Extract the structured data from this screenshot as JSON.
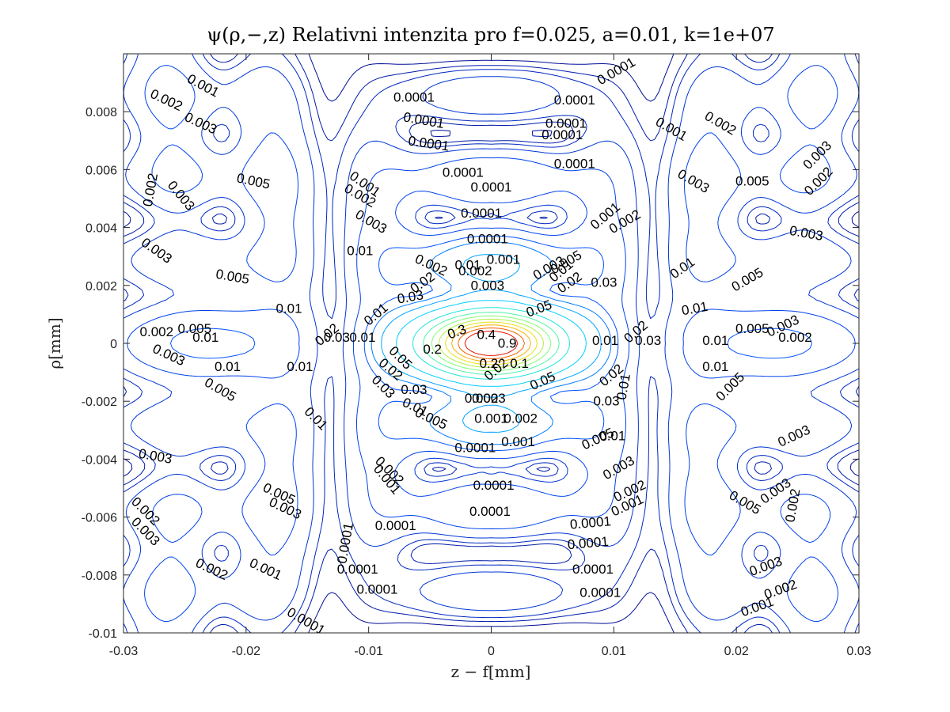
{
  "chart_data": {
    "type": "contour",
    "title": "ψ(ρ,−,z) Relativni intenzita pro f=0.025, a=0.01, k=1e+07",
    "xlabel": "z − f[mm]",
    "ylabel": "ρ[mm]",
    "xlim": [
      -0.03,
      0.03
    ],
    "ylim": [
      -0.01,
      0.01
    ],
    "x_ticks": [
      -0.03,
      -0.02,
      -0.01,
      0,
      0.01,
      0.02,
      0.03
    ],
    "x_tick_labels": [
      "-0.03",
      "-0.02",
      "-0.01",
      "0",
      "0.01",
      "0.02",
      "0.03"
    ],
    "y_ticks": [
      -0.01,
      -0.008,
      -0.006,
      -0.004,
      -0.002,
      0,
      0.002,
      0.004,
      0.006,
      0.008
    ],
    "y_tick_labels": [
      "-0.01",
      "-0.008",
      "-0.006",
      "-0.004",
      "-0.002",
      "0",
      "0.002",
      "0.004",
      "0.006",
      "0.008"
    ],
    "grid": false,
    "contour_levels": [
      0.0001,
      0.001,
      0.002,
      0.003,
      0.005,
      0.01,
      0.02,
      0.03,
      0.05,
      0.1,
      0.2,
      0.3,
      0.4,
      0.5,
      0.6,
      0.7,
      0.8,
      0.9
    ],
    "colormap": "jet",
    "line_colors": {
      "low": "#000080",
      "mid": "#00c8ff",
      "high": "#ff2000"
    },
    "contour_labels": [
      {
        "text": "0.001",
        "x": -0.0235,
        "y": 0.0089,
        "angle": 28
      },
      {
        "text": "0.002",
        "x": -0.0265,
        "y": 0.0084,
        "angle": 25
      },
      {
        "text": "0.003",
        "x": -0.0237,
        "y": 0.0076,
        "angle": 25
      },
      {
        "text": "0.0001",
        "x": -0.0063,
        "y": 0.0085,
        "angle": 0
      },
      {
        "text": "0.0001",
        "x": -0.0055,
        "y": 0.0077,
        "angle": 10
      },
      {
        "text": "0.0001",
        "x": -0.0051,
        "y": 0.0069,
        "angle": 8
      },
      {
        "text": "0.0001",
        "x": 0.0068,
        "y": 0.0084,
        "angle": 0
      },
      {
        "text": "0.0001",
        "x": 0.0061,
        "y": 0.0076,
        "angle": 0
      },
      {
        "text": "0.0001",
        "x": 0.0058,
        "y": 0.0072,
        "angle": 0
      },
      {
        "text": "0.0001",
        "x": 0.0102,
        "y": 0.0094,
        "angle": -30
      },
      {
        "text": "0.0001",
        "x": -0.0023,
        "y": 0.0059,
        "angle": 0
      },
      {
        "text": "0.0001",
        "x": 0.0068,
        "y": 0.0062,
        "angle": 0
      },
      {
        "text": "0.0001",
        "x": 0,
        "y": 0.0054,
        "angle": 0
      },
      {
        "text": "0.0001",
        "x": -0.0008,
        "y": 0.0045,
        "angle": 0
      },
      {
        "text": "0.0001",
        "x": -0.0003,
        "y": 0.0036,
        "angle": 0
      },
      {
        "text": "0.001",
        "x": 0.001,
        "y": 0.0029,
        "angle": 0
      },
      {
        "text": "0.001",
        "x": -0.0103,
        "y": 0.0055,
        "angle": 35
      },
      {
        "text": "0.002",
        "x": -0.0107,
        "y": 0.0051,
        "angle": 30
      },
      {
        "text": "0.003",
        "x": -0.0098,
        "y": 0.0042,
        "angle": 30
      },
      {
        "text": "0.005",
        "x": -0.0194,
        "y": 0.0056,
        "angle": 12
      },
      {
        "text": "0.002",
        "x": -0.0278,
        "y": 0.0053,
        "angle": -80
      },
      {
        "text": "0.003",
        "x": -0.0253,
        "y": 0.0051,
        "angle": 50
      },
      {
        "text": "0.003",
        "x": -0.0273,
        "y": 0.0032,
        "angle": 35
      },
      {
        "text": "0.01",
        "x": -0.0107,
        "y": 0.0032,
        "angle": 0
      },
      {
        "text": "0.005",
        "x": -0.0211,
        "y": 0.0023,
        "angle": 10
      },
      {
        "text": "0.01",
        "x": -0.0165,
        "y": 0.0012,
        "angle": 0
      },
      {
        "text": "0.001",
        "x": 0.0147,
        "y": 0.0074,
        "angle": 30
      },
      {
        "text": "0.002",
        "x": 0.0187,
        "y": 0.0076,
        "angle": 30
      },
      {
        "text": "0.003",
        "x": 0.0266,
        "y": 0.0065,
        "angle": -45
      },
      {
        "text": "0.002",
        "x": 0.0267,
        "y": 0.0056,
        "angle": -45
      },
      {
        "text": "0.003",
        "x": 0.0165,
        "y": 0.0056,
        "angle": 30
      },
      {
        "text": "0.005",
        "x": 0.0213,
        "y": 0.0056,
        "angle": 0
      },
      {
        "text": "0.001",
        "x": 0.0093,
        "y": 0.0044,
        "angle": -40
      },
      {
        "text": "0.002",
        "x": 0.0109,
        "y": 0.0042,
        "angle": -30
      },
      {
        "text": "0.003",
        "x": 0.0257,
        "y": 0.0038,
        "angle": 10
      },
      {
        "text": "0.01",
        "x": 0.0156,
        "y": 0.0026,
        "angle": -35
      },
      {
        "text": "0.005",
        "x": 0.0209,
        "y": 0.0022,
        "angle": -30
      },
      {
        "text": "0.03",
        "x": 0.0092,
        "y": 0.0021,
        "angle": 0
      },
      {
        "text": "0.01",
        "x": 0.0166,
        "y": 0.0012,
        "angle": -10
      },
      {
        "text": "0.01",
        "x": 0.0183,
        "y": 0.0001,
        "angle": 0
      },
      {
        "text": "0.005",
        "x": 0.0213,
        "y": 0.0005,
        "angle": 0
      },
      {
        "text": "0.003",
        "x": 0.0238,
        "y": 0.0006,
        "angle": -25
      },
      {
        "text": "0.002",
        "x": 0.0248,
        "y": 0.0002,
        "angle": 0
      },
      {
        "text": "0.01",
        "x": 0.0183,
        "y": -0.0008,
        "angle": 0
      },
      {
        "text": "0.01",
        "x": 0.0108,
        "y": -0.0015,
        "angle": -80
      },
      {
        "text": "0.005",
        "x": 0.0195,
        "y": -0.0015,
        "angle": -45
      },
      {
        "text": "0.03",
        "x": 0.0094,
        "y": -0.002,
        "angle": 0
      },
      {
        "text": "0.01",
        "x": 0.0099,
        "y": -0.0032,
        "angle": 0
      },
      {
        "text": "0.003",
        "x": 0.0247,
        "y": -0.0032,
        "angle": -25
      },
      {
        "text": "0.005",
        "x": 0.0087,
        "y": -0.0033,
        "angle": -25
      },
      {
        "text": "0.003",
        "x": 0.0104,
        "y": -0.0043,
        "angle": -30
      },
      {
        "text": "0.002",
        "x": 0.0113,
        "y": -0.0051,
        "angle": -25
      },
      {
        "text": "0.001",
        "x": 0.0111,
        "y": -0.0056,
        "angle": -25
      },
      {
        "text": "0.002",
        "x": 0.0246,
        "y": -0.0056,
        "angle": -80
      },
      {
        "text": "0.003",
        "x": 0.0232,
        "y": -0.0051,
        "angle": -35
      },
      {
        "text": "0.005",
        "x": 0.0207,
        "y": -0.0055,
        "angle": 30
      },
      {
        "text": "0.003",
        "x": 0.0224,
        "y": -0.0077,
        "angle": -20
      },
      {
        "text": "0.002",
        "x": 0.0236,
        "y": -0.0085,
        "angle": -20
      },
      {
        "text": "0.001",
        "x": 0.0217,
        "y": -0.0091,
        "angle": -20
      },
      {
        "text": "0.0001",
        "x": 0.0081,
        "y": -0.0062,
        "angle": -5
      },
      {
        "text": "0.0001",
        "x": 0.0079,
        "y": -0.0069,
        "angle": -5
      },
      {
        "text": "0.0001",
        "x": 0.0083,
        "y": -0.0078,
        "angle": 0
      },
      {
        "text": "0.0001",
        "x": 0.0089,
        "y": -0.0086,
        "angle": 0
      },
      {
        "text": "0.0001",
        "x": 0.0002,
        "y": -0.0049,
        "angle": 0
      },
      {
        "text": "0.0001",
        "x": -0.0001,
        "y": -0.0058,
        "angle": 0
      },
      {
        "text": "0.0001",
        "x": -0.0093,
        "y": -0.0085,
        "angle": 0
      },
      {
        "text": "0.0001",
        "x": -0.0109,
        "y": -0.0078,
        "angle": 0
      },
      {
        "text": "0.0001",
        "x": -0.0119,
        "y": -0.0069,
        "angle": -80
      },
      {
        "text": "0.0001",
        "x": -0.0078,
        "y": -0.0063,
        "angle": 0
      },
      {
        "text": "0.0001",
        "x": -0.0013,
        "y": -0.0036,
        "angle": 0
      },
      {
        "text": "0.001",
        "x": 0.0022,
        "y": -0.0034,
        "angle": 0
      },
      {
        "text": "0.001",
        "x": 0,
        "y": -0.0026,
        "angle": 0
      },
      {
        "text": "0.002",
        "x": 0.0024,
        "y": -0.0026,
        "angle": 0
      },
      {
        "text": "0.003",
        "x": -0.0002,
        "y": -0.0019,
        "angle": 0
      },
      {
        "text": "0.002",
        "x": -0.0008,
        "y": -0.0019,
        "angle": 0
      },
      {
        "text": "0.005",
        "x": -0.0049,
        "y": -0.0026,
        "angle": 25
      },
      {
        "text": "0.01",
        "x": -0.0062,
        "y": -0.0022,
        "angle": 25
      },
      {
        "text": "0.03",
        "x": -0.0063,
        "y": -0.0016,
        "angle": 0
      },
      {
        "text": "0.02",
        "x": -0.0082,
        "y": -0.0009,
        "angle": 40
      },
      {
        "text": "0.03",
        "x": -0.0088,
        "y": -0.0015,
        "angle": 45
      },
      {
        "text": "0.05",
        "x": -0.0074,
        "y": -0.0005,
        "angle": 45
      },
      {
        "text": "0.2",
        "x": -0.0048,
        "y": -0.0002,
        "angle": 0
      },
      {
        "text": "0.2",
        "x": -0.0002,
        "y": -0.0007,
        "angle": 0
      },
      {
        "text": "0.1",
        "x": 0.0023,
        "y": -0.0007,
        "angle": 0
      },
      {
        "text": "0.02",
        "x": 0.0004,
        "y": -0.0009,
        "angle": -40
      },
      {
        "text": "0.05",
        "x": 0.0042,
        "y": -0.0013,
        "angle": -25
      },
      {
        "text": "0.02",
        "x": 0.0098,
        "y": -0.0011,
        "angle": -40
      },
      {
        "text": "0.01",
        "x": -0.0215,
        "y": -0.0008,
        "angle": 0
      },
      {
        "text": "0.01",
        "x": -0.0156,
        "y": -0.0008,
        "angle": 0
      },
      {
        "text": "0.005",
        "x": -0.0221,
        "y": -0.0016,
        "angle": 30
      },
      {
        "text": "0.003",
        "x": -0.0263,
        "y": -0.0004,
        "angle": 25
      },
      {
        "text": "0.002",
        "x": -0.0273,
        "y": 0.0004,
        "angle": 0
      },
      {
        "text": "0.005",
        "x": -0.0242,
        "y": 0.0005,
        "angle": 0
      },
      {
        "text": "0.01",
        "x": -0.0233,
        "y": 0.0002,
        "angle": 0
      },
      {
        "text": "0.01",
        "x": -0.0143,
        "y": -0.0026,
        "angle": 45
      },
      {
        "text": "0.003",
        "x": -0.0274,
        "y": -0.0039,
        "angle": 10
      },
      {
        "text": "0.003",
        "x": -0.0168,
        "y": -0.0057,
        "angle": 25
      },
      {
        "text": "0.005",
        "x": -0.0173,
        "y": -0.0052,
        "angle": 25
      },
      {
        "text": "0.002",
        "x": -0.0282,
        "y": -0.0058,
        "angle": 45
      },
      {
        "text": "0.003",
        "x": -0.0282,
        "y": -0.0065,
        "angle": 45
      },
      {
        "text": "0.002",
        "x": -0.0228,
        "y": -0.0078,
        "angle": 25
      },
      {
        "text": "0.001",
        "x": -0.0184,
        "y": -0.0078,
        "angle": 25
      },
      {
        "text": "0.002",
        "x": -0.0083,
        "y": -0.0044,
        "angle": 45
      },
      {
        "text": "0.001",
        "x": -0.0085,
        "y": -0.0047,
        "angle": 50
      },
      {
        "text": "0.0001",
        "x": -0.0151,
        "y": -0.0096,
        "angle": 30
      },
      {
        "text": "0.01",
        "x": -0.0105,
        "y": 0.0002,
        "angle": 0
      },
      {
        "text": "0.03",
        "x": -0.0126,
        "y": 0.0002,
        "angle": 0
      },
      {
        "text": "0.01",
        "x": -0.0094,
        "y": 0.001,
        "angle": -40
      },
      {
        "text": "0.02",
        "x": -0.0134,
        "y": 0.0003,
        "angle": -40
      },
      {
        "text": "0.01",
        "x": 0.0093,
        "y": 0.0001,
        "angle": 0
      },
      {
        "text": "0.03",
        "x": 0.0128,
        "y": 0.0001,
        "angle": 0
      },
      {
        "text": "0.02",
        "x": 0.0118,
        "y": 0.0004,
        "angle": -40
      },
      {
        "text": "0.01",
        "x": -0.0019,
        "y": 0.0027,
        "angle": 0
      },
      {
        "text": "0.002",
        "x": -0.0049,
        "y": 0.0027,
        "angle": 25
      },
      {
        "text": "0.002",
        "x": -0.0013,
        "y": 0.0025,
        "angle": 0
      },
      {
        "text": "0.003",
        "x": 0.0047,
        "y": 0.0026,
        "angle": -30
      },
      {
        "text": "0.005",
        "x": 0.0061,
        "y": 0.0028,
        "angle": -30
      },
      {
        "text": "0.01",
        "x": 0.0057,
        "y": 0.0025,
        "angle": -40
      },
      {
        "text": "0.02",
        "x": 0.0064,
        "y": 0.0021,
        "angle": -35
      },
      {
        "text": "0.03",
        "x": -0.0066,
        "y": 0.0016,
        "angle": -10
      },
      {
        "text": "0.02",
        "x": -0.0056,
        "y": 0.0021,
        "angle": -35
      },
      {
        "text": "0.003",
        "x": -0.0003,
        "y": 0.002,
        "angle": 0
      },
      {
        "text": "0.05",
        "x": 0.0039,
        "y": 0.0012,
        "angle": -20
      },
      {
        "text": "0.4",
        "x": -0.0004,
        "y": 0.0003,
        "angle": 0
      },
      {
        "text": "0.3",
        "x": -0.0028,
        "y": 0.0004,
        "angle": -20
      },
      {
        "text": "0.9",
        "x": 0.0013,
        "y": 0,
        "angle": 0
      }
    ]
  }
}
